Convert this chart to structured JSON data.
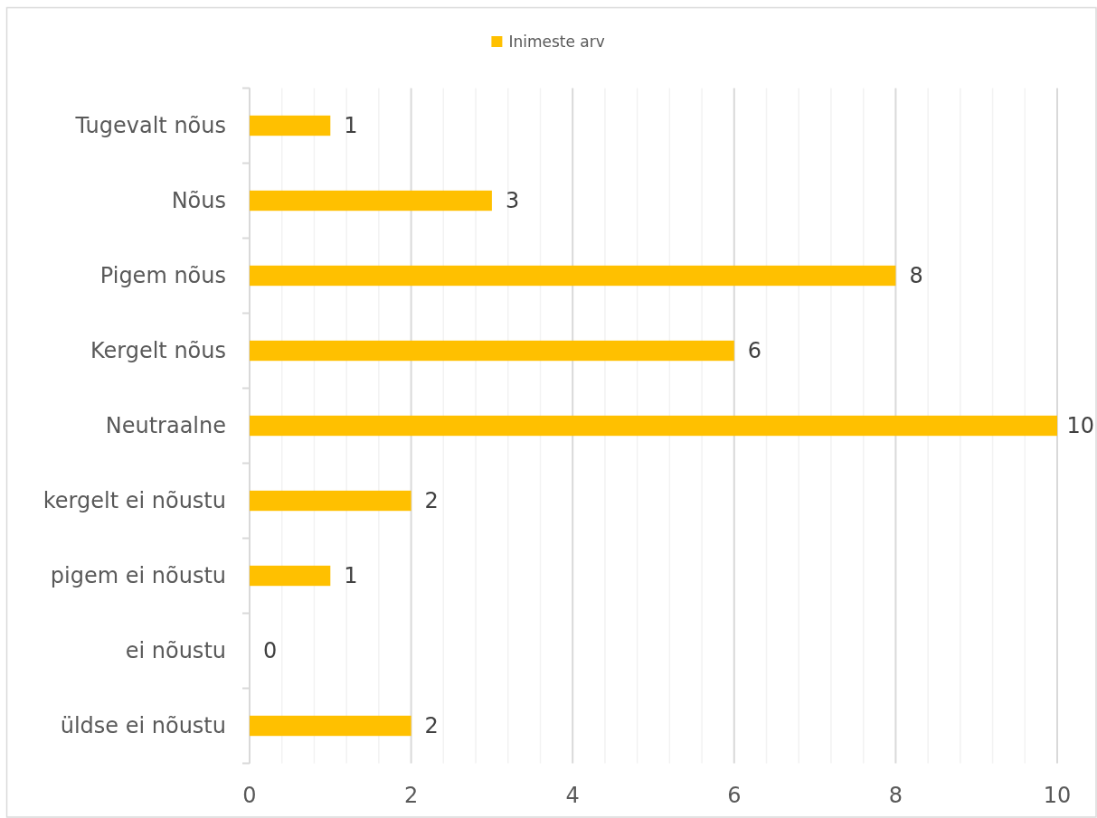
{
  "chart_data": {
    "type": "bar",
    "orientation": "horizontal",
    "categories": [
      "Tugevalt nõus",
      "Nõus",
      "Pigem nõus",
      "Kergelt nõus",
      "Neutraalne",
      "kergelt ei nõustu",
      "pigem ei nõustu",
      "ei nõustu",
      "üldse ei nõustu"
    ],
    "series": [
      {
        "name": "Inimeste arv",
        "color": "#ffc000",
        "values": [
          1,
          3,
          8,
          6,
          10,
          2,
          1,
          0,
          2
        ]
      }
    ],
    "xlim": [
      0,
      10
    ],
    "xticks": [
      0,
      {
        "value": 0.4,
        "label": null
      },
      {
        "value": 0.8,
        "label": null
      },
      {
        "value": 1.2,
        "label": null
      },
      {
        "value": 1.6,
        "label": null
      },
      2,
      {
        "value": 2.4,
        "label": null
      },
      {
        "value": 2.8,
        "label": null
      },
      {
        "value": 3.2,
        "label": null
      },
      {
        "value": 3.6,
        "label": null
      },
      4,
      {
        "value": 4.4,
        "label": null
      },
      {
        "value": 4.8,
        "label": null
      },
      {
        "value": 5.2,
        "label": null
      },
      {
        "value": 5.6,
        "label": null
      },
      6,
      {
        "value": 6.4,
        "label": null
      },
      {
        "value": 6.8,
        "label": null
      },
      {
        "value": 7.2,
        "label": null
      },
      {
        "value": 7.6,
        "label": null
      },
      8,
      {
        "value": 8.4,
        "label": null
      },
      {
        "value": 8.8,
        "label": null
      },
      {
        "value": 9.2,
        "label": null
      },
      {
        "value": 9.6,
        "label": null
      },
      10
    ],
    "grid": "x",
    "legend": "top",
    "data_labels": true
  }
}
